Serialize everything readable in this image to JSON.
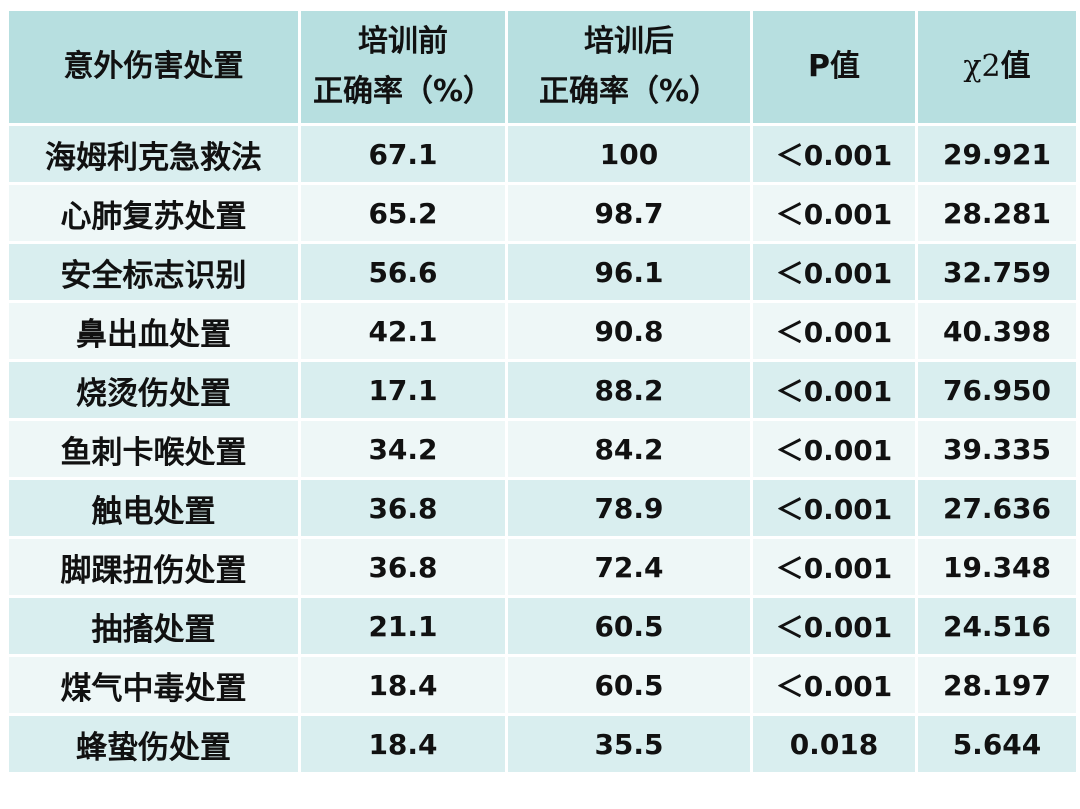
{
  "header": {
    "col1": "意外伤害处置",
    "col2_line1": "培训前",
    "col2_line2": "正确率（%）",
    "col3_line1": "培训后",
    "col3_line2": "正确率（%）",
    "col4": "P值",
    "col5_symbol": "χ2",
    "col5_suffix": "值"
  },
  "rows": [
    {
      "name": "海姆利克急救法",
      "before": "67.1",
      "after": "100",
      "p": "＜0.001",
      "chi2": "29.921"
    },
    {
      "name": "心肺复苏处置",
      "before": "65.2",
      "after": "98.7",
      "p": "＜0.001",
      "chi2": "28.281"
    },
    {
      "name": "安全标志识别",
      "before": "56.6",
      "after": "96.1",
      "p": "＜0.001",
      "chi2": "32.759"
    },
    {
      "name": "鼻出血处置",
      "before": "42.1",
      "after": "90.8",
      "p": "＜0.001",
      "chi2": "40.398"
    },
    {
      "name": "烧烫伤处置",
      "before": "17.1",
      "after": "88.2",
      "p": "＜0.001",
      "chi2": "76.950"
    },
    {
      "name": "鱼刺卡喉处置",
      "before": "34.2",
      "after": "84.2",
      "p": "＜0.001",
      "chi2": "39.335"
    },
    {
      "name": "触电处置",
      "before": "36.8",
      "after": "78.9",
      "p": "＜0.001",
      "chi2": "27.636"
    },
    {
      "name": "脚踝扭伤处置",
      "before": "36.8",
      "after": "72.4",
      "p": "＜0.001",
      "chi2": "19.348"
    },
    {
      "name": "抽搐处置",
      "before": "21.1",
      "after": "60.5",
      "p": "＜0.001",
      "chi2": "24.516"
    },
    {
      "name": "煤气中毒处置",
      "before": "18.4",
      "after": "60.5",
      "p": "＜0.001",
      "chi2": "28.197"
    },
    {
      "name": "蜂蛰伤处置",
      "before": "18.4",
      "after": "35.5",
      "p": "0.018",
      "chi2": "5.644"
    }
  ],
  "colors": {
    "header_bg": "#b7dfe0",
    "row_bg_dark": "#d9eeef",
    "row_bg_light": "#eef7f7",
    "grid": "#ffffff"
  }
}
